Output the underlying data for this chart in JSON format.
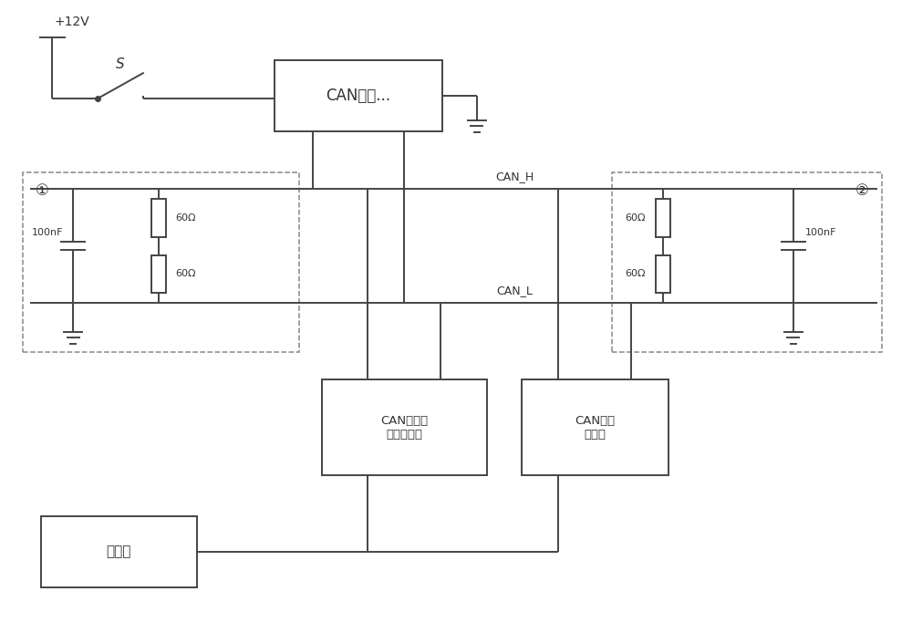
{
  "bg_color": "#ffffff",
  "line_color": "#444444",
  "dashed_color": "#888888",
  "text_color": "#333333",
  "fig_width": 10.0,
  "fig_height": 6.94,
  "labels": {
    "plus12v": "+12V",
    "switch": "S",
    "can_node": "CAN节点...",
    "can_h": "CAN_H",
    "can_l": "CAN_L",
    "r1_top": "60Ω",
    "r1_bot": "60Ω",
    "c1": "100nF",
    "circle1": "①",
    "r2_top": "60Ω",
    "r2_bot": "60Ω",
    "c2": "100nF",
    "circle2": "②",
    "monitor": "CAN总线报\n文监控设备",
    "jammer": "CAN总线\n干扰仪",
    "host": "上位机"
  }
}
